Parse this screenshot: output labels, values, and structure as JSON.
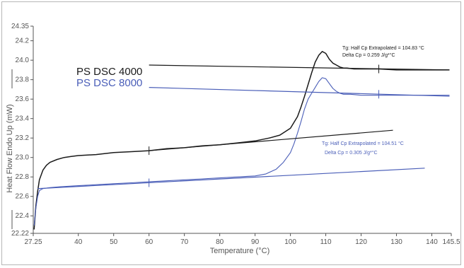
{
  "chart_data": {
    "type": "line",
    "xlabel": "Temperature (°C)",
    "ylabel": "Heat Flow Endo Up (mW)",
    "xlim": [
      27.25,
      145.5
    ],
    "ylim": [
      22.22,
      24.35
    ],
    "x_ticks": [
      27.25,
      40,
      50,
      60,
      70,
      80,
      90,
      100,
      110,
      120,
      130,
      140,
      145.5
    ],
    "x_tick_labels": [
      "27.25",
      "40",
      "50",
      "60",
      "70",
      "80",
      "90",
      "100",
      "110",
      "120",
      "130",
      "140",
      "145.5"
    ],
    "y_ticks": [
      22.22,
      22.4,
      22.6,
      22.8,
      23.0,
      23.2,
      23.4,
      23.6,
      23.8,
      24.0,
      24.2,
      24.35
    ],
    "y_tick_labels": [
      "22.22",
      "22.4",
      "22.6",
      "22.8",
      "23.0",
      "23.2",
      "23.4",
      "23.6",
      "23.8",
      "24.0",
      "24.2",
      "24.35"
    ],
    "grid": false,
    "legend_position": "top-left",
    "series": [
      {
        "name": "PS DSC 4000",
        "color": "#1a1a1a",
        "x": [
          27.5,
          28,
          28.5,
          29,
          30,
          31,
          32,
          34,
          36,
          38,
          40,
          45,
          50,
          55,
          60,
          65,
          70,
          75,
          80,
          85,
          90,
          94,
          97,
          100,
          102,
          103,
          104,
          105,
          106,
          107,
          108,
          109,
          110,
          111,
          112,
          113,
          114,
          115,
          116,
          118,
          120,
          125,
          130,
          135,
          140,
          145
        ],
        "y": [
          22.26,
          22.5,
          22.65,
          22.77,
          22.87,
          22.92,
          22.95,
          22.98,
          23.0,
          23.01,
          23.02,
          23.03,
          23.05,
          23.06,
          23.07,
          23.09,
          23.1,
          23.12,
          23.13,
          23.15,
          23.17,
          23.2,
          23.23,
          23.3,
          23.42,
          23.52,
          23.63,
          23.75,
          23.87,
          23.98,
          24.05,
          24.09,
          24.07,
          24.01,
          23.97,
          23.95,
          23.93,
          23.92,
          23.92,
          23.91,
          23.91,
          23.91,
          23.9,
          23.9,
          23.9,
          23.9
        ]
      },
      {
        "name": "PS DSC 8000",
        "color": "#4a5eb8",
        "x": [
          27.5,
          28,
          28.5,
          29,
          30,
          32,
          35,
          40,
          45,
          50,
          55,
          60,
          65,
          70,
          75,
          80,
          85,
          90,
          93,
          96,
          98,
          100,
          101,
          102,
          103,
          104,
          105,
          106,
          107,
          108,
          109,
          110,
          111,
          112,
          113,
          114,
          115,
          117,
          120,
          125,
          130,
          135,
          140,
          145
        ],
        "y": [
          22.3,
          22.48,
          22.6,
          22.66,
          22.68,
          22.69,
          22.7,
          22.71,
          22.72,
          22.73,
          22.74,
          22.75,
          22.76,
          22.77,
          22.78,
          22.79,
          22.8,
          22.81,
          22.83,
          22.88,
          22.95,
          23.05,
          23.14,
          23.25,
          23.37,
          23.5,
          23.6,
          23.66,
          23.72,
          23.78,
          23.82,
          23.81,
          23.76,
          23.71,
          23.68,
          23.66,
          23.65,
          23.65,
          23.64,
          23.64,
          23.64,
          23.64,
          23.64,
          23.64
        ]
      }
    ],
    "baselines": [
      {
        "color": "#1a1a1a",
        "x": [
          60,
          129
        ],
        "y": [
          23.07,
          23.28
        ]
      },
      {
        "color": "#1a1a1a",
        "x": [
          60,
          145
        ],
        "y": [
          23.95,
          23.9
        ]
      },
      {
        "color": "#4a5eb8",
        "x": [
          28.5,
          138
        ],
        "y": [
          22.68,
          22.89
        ]
      },
      {
        "color": "#4a5eb8",
        "x": [
          60,
          145
        ],
        "y": [
          23.72,
          23.63
        ]
      }
    ],
    "markers": [
      {
        "color": "#1a1a1a",
        "x": 60,
        "y": 23.07
      },
      {
        "color": "#1a1a1a",
        "x": 125,
        "y": 23.91
      },
      {
        "color": "#4a5eb8",
        "x": 60,
        "y": 22.74
      },
      {
        "color": "#4a5eb8",
        "x": 125,
        "y": 23.65
      }
    ],
    "annotations": [
      {
        "color": "#1a1a1a",
        "lines": [
          "Tg: Half Cp Extrapolated = 104.83 °C",
          "Delta Cp = 0.259 J/g*°C"
        ]
      },
      {
        "color": "#4a5eb8",
        "lines": [
          "Tg: Half Cp Extrapolated = 104.51 °C",
          "Delta Cp = 0.305 J/g*°C"
        ]
      }
    ]
  }
}
